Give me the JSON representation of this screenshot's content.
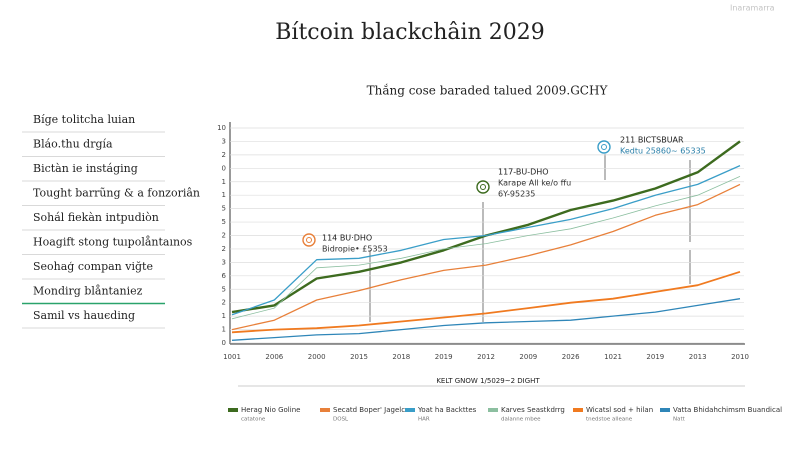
{
  "brand": "Inaramarra",
  "sidebar": [
    "Bíge tolitcha luian",
    "Bláo.thu drgía",
    "Bictàn ie instáging",
    "Tought barrũng & a fonzoriân",
    "Sohál fiekàn intpudiòn",
    "Hoagift stong tuıpolåntaınos",
    "Seohaģ compan viğte",
    "Mondirg blåntaniez",
    "Samil vs hauєding"
  ],
  "active_sidebar": 7,
  "chart_data": {
    "type": "line",
    "title": "Bítcoin blackchâin  2029",
    "subtitle": "Thắng cose baraded talued 2009.GCHY",
    "x_label": "KELT GNOW 1/5029~2 DIGHT",
    "categories": [
      "1001",
      "2006",
      "2000",
      "2015",
      "2018",
      "2019",
      "2012",
      "2009",
      "2026",
      "1021",
      "2019",
      "2013",
      "2010"
    ],
    "ylim": [
      0,
      16
    ],
    "yticks": [
      {
        "value": 0,
        "label": "0"
      },
      {
        "value": 1,
        "label": "1"
      },
      {
        "value": 2,
        "label": "1"
      },
      {
        "value": 3,
        "label": "2"
      },
      {
        "value": 4,
        "label": "5"
      },
      {
        "value": 5,
        "label": "6"
      },
      {
        "value": 6,
        "label": "3"
      },
      {
        "value": 7,
        "label": "2"
      },
      {
        "value": 8,
        "label": "2"
      },
      {
        "value": 9,
        "label": "5"
      },
      {
        "value": 10,
        "label": "5"
      },
      {
        "value": 11,
        "label": "1"
      },
      {
        "value": 12,
        "label": "1"
      },
      {
        "value": 13,
        "label": "0"
      },
      {
        "value": 14,
        "label": "2"
      },
      {
        "value": 15,
        "label": "3"
      },
      {
        "value": 16,
        "label": "10"
      }
    ],
    "grid": true,
    "series": [
      {
        "name": "Herag Nio Goline",
        "note": "catatone",
        "color": "#3d6b1f",
        "width": 2.4,
        "values": [
          2.3,
          2.8,
          4.8,
          5.3,
          6.0,
          6.9,
          8.0,
          8.8,
          9.9,
          10.6,
          11.5,
          12.7,
          15.0
        ]
      },
      {
        "name": "Secatd Boper' Jagelcs",
        "note": "DOSL",
        "color": "#e8803a",
        "width": 1.3,
        "values": [
          1.0,
          1.7,
          3.2,
          3.9,
          4.7,
          5.4,
          5.8,
          6.5,
          7.3,
          8.3,
          9.5,
          10.3,
          11.8
        ]
      },
      {
        "name": "Yoat ha Backttes",
        "note": "HAR",
        "color": "#3a9ec8",
        "width": 1.3,
        "values": [
          2.1,
          3.2,
          6.2,
          6.3,
          6.9,
          7.7,
          8.0,
          8.6,
          9.2,
          10.0,
          11.0,
          11.8,
          13.2
        ]
      },
      {
        "name": "Karves Seastkdrrg",
        "note": "dalanne mbee",
        "color": "#8cbfa0",
        "width": 0.8,
        "values": [
          1.8,
          2.6,
          5.6,
          5.8,
          6.3,
          7.0,
          7.4,
          8.0,
          8.5,
          9.3,
          10.2,
          11.0,
          12.4
        ]
      },
      {
        "name": "Wicatsl sod + hilan",
        "note": "tnedstoe alleane",
        "color": "#f07a20",
        "width": 1.8,
        "values": [
          0.8,
          1.0,
          1.1,
          1.3,
          1.6,
          1.9,
          2.2,
          2.6,
          3.0,
          3.3,
          3.8,
          4.3,
          5.3
        ]
      },
      {
        "name": "Vatta Bhidahchimsm Buandical",
        "note": "Natt",
        "color": "#2f86b8",
        "width": 1.3,
        "values": [
          0.2,
          0.4,
          0.6,
          0.7,
          1.0,
          1.3,
          1.5,
          1.6,
          1.7,
          2.0,
          2.3,
          2.8,
          3.3
        ]
      }
    ],
    "annotations": [
      {
        "lines": [
          "114 BU·DHO",
          "Bidropie• £5353"
        ],
        "color": "#e8803a"
      },
      {
        "lines": [
          "117-BU-DHO",
          "Karape All ke/o ffu",
          "6Y-95235"
        ],
        "color": "#3d6b1f"
      },
      {
        "lines": [
          "211 BICTSBUAR",
          "Kedtu 25860~ 65335"
        ],
        "color": "#3a9ec8"
      }
    ]
  }
}
